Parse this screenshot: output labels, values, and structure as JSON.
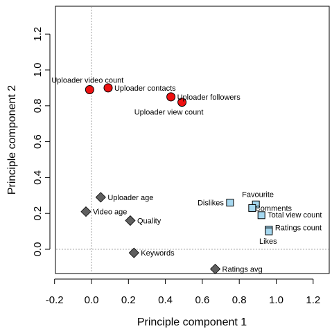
{
  "chart_data": {
    "type": "scatter",
    "title": "",
    "xlabel": "Principle component 1",
    "ylabel": "Principle component 2",
    "xlim": [
      -0.2,
      1.3
    ],
    "ylim": [
      -0.15,
      1.3
    ],
    "x_ticks": [
      "-0.2",
      "0.0",
      "0.2",
      "0.4",
      "0.6",
      "0.8",
      "1.0",
      "1.2"
    ],
    "y_ticks": [
      "0.0",
      "0.2",
      "0.4",
      "0.6",
      "0.8",
      "1.0",
      "1.2"
    ],
    "reference_lines": {
      "x": 0,
      "y": 0
    },
    "grid": false,
    "groups": [
      {
        "marker": "circle",
        "color": "#ee1111",
        "points": [
          {
            "label": "Uploader video count",
            "x": -0.01,
            "y": 0.89
          },
          {
            "label": "Uploader contacts",
            "x": 0.09,
            "y": 0.9
          },
          {
            "label": "Uploader followers",
            "x": 0.43,
            "y": 0.85
          },
          {
            "label": "Uploader view count",
            "x": 0.49,
            "y": 0.82
          }
        ]
      },
      {
        "marker": "diamond",
        "color": "#5f5f5f",
        "points": [
          {
            "label": "Uploader age",
            "x": 0.05,
            "y": 0.29
          },
          {
            "label": "Video age",
            "x": -0.03,
            "y": 0.21
          },
          {
            "label": "Quality",
            "x": 0.21,
            "y": 0.16
          },
          {
            "label": "Keywords",
            "x": 0.23,
            "y": -0.02
          },
          {
            "label": "Ratings avg",
            "x": 0.67,
            "y": -0.11
          }
        ]
      },
      {
        "marker": "square",
        "color": "#a6d8f0",
        "points": [
          {
            "label": "Dislikes",
            "x": 0.75,
            "y": 0.26
          },
          {
            "label": "Favourite",
            "x": 0.89,
            "y": 0.25
          },
          {
            "label": "Comments",
            "x": 0.87,
            "y": 0.23
          },
          {
            "label": "Total view count",
            "x": 0.92,
            "y": 0.19
          },
          {
            "label": "Ratings count",
            "x": 0.96,
            "y": 0.11
          },
          {
            "label": "Likes",
            "x": 0.96,
            "y": 0.1
          }
        ]
      }
    ]
  }
}
